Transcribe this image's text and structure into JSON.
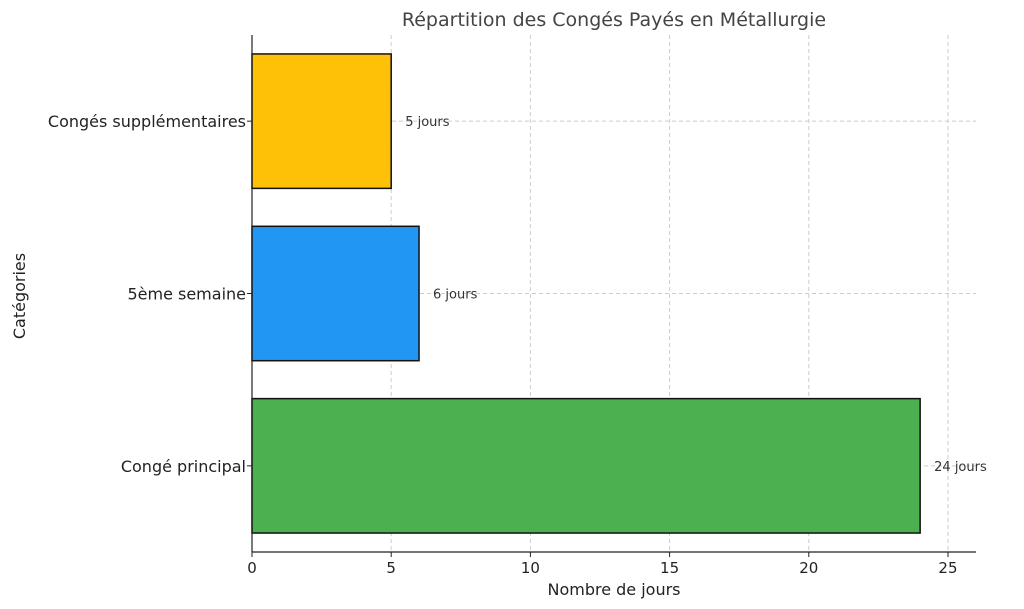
{
  "chart_data": {
    "type": "bar",
    "orientation": "horizontal",
    "title": "Répartition des Congés Payés en Métallurgie",
    "xlabel": "Nombre de jours",
    "ylabel": "Catégories",
    "categories": [
      "Congé principal",
      "5ème semaine",
      "Congés supplémentaires"
    ],
    "values": [
      24,
      6,
      5
    ],
    "data_labels": [
      "24 jours",
      "6 jours",
      "5 jours"
    ],
    "colors": [
      "#4caf50",
      "#2196f3",
      "#ffc107"
    ],
    "xlim": [
      0,
      25
    ],
    "xticks": [
      0,
      5,
      10,
      15,
      20,
      25
    ],
    "grid": true
  }
}
